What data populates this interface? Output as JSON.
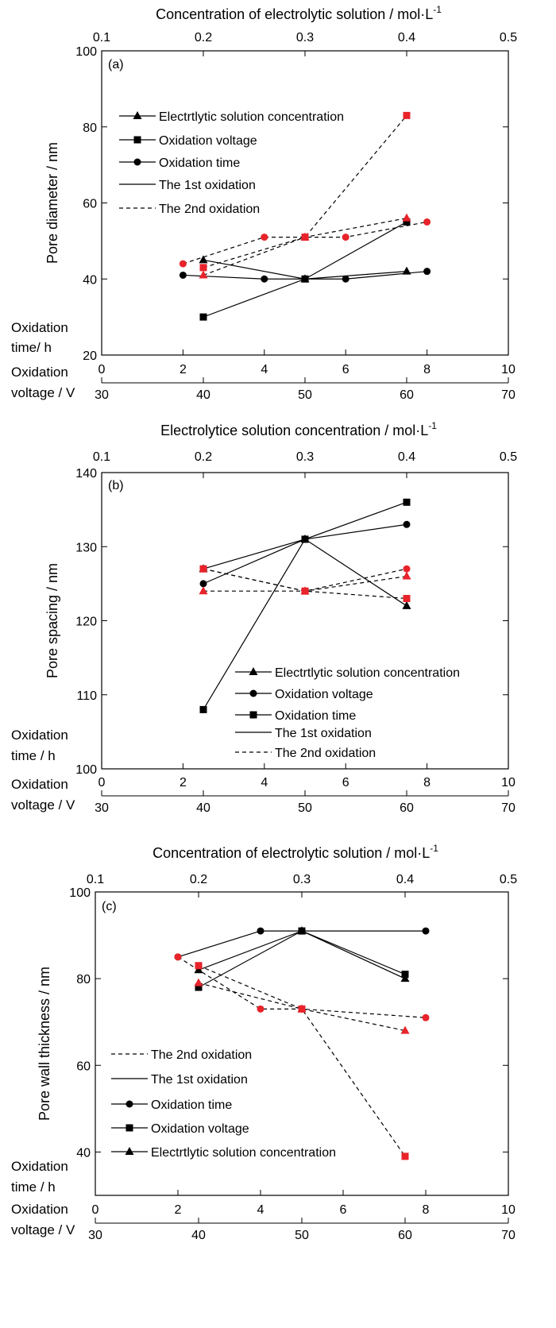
{
  "chart_data": [
    {
      "type": "line",
      "panel_label": "(a)",
      "ylabel": "Pore diameter / nm",
      "ylim": [
        20,
        100
      ],
      "yticks": [
        20,
        40,
        60,
        80,
        100
      ],
      "top_axis": {
        "label": "Concentration of electrolytic solution / mol·L",
        "superscript": "-1",
        "lim": [
          0.1,
          0.5
        ],
        "ticks": [
          "0.1",
          "0.2",
          "0.3",
          "0.4",
          "0.5"
        ]
      },
      "time_axis": {
        "label": "Oxidation time/ h",
        "lim": [
          0,
          10
        ],
        "ticks": [
          "0",
          "2",
          "4",
          "6",
          "8",
          "10"
        ]
      },
      "voltage_axis": {
        "label": "Oxidation voltage / V",
        "lim": [
          30,
          70
        ],
        "ticks": [
          "30",
          "40",
          "50",
          "60",
          "70"
        ]
      },
      "legend": {
        "entries": [
          {
            "label": "Electrtlytic solution concentration",
            "marker": "triangle",
            "style": "solid"
          },
          {
            "label": "Oxidation voltage",
            "marker": "square",
            "style": "solid"
          },
          {
            "label": "Oxidation time",
            "marker": "circle",
            "style": "solid"
          },
          {
            "label": "The 1st oxidation",
            "marker": "none",
            "style": "solid"
          },
          {
            "label": "The 2nd oxidation",
            "marker": "none",
            "style": "dashed"
          }
        ]
      },
      "series": [
        {
          "variable": "concentration",
          "oxidation": "1st",
          "marker": "triangle",
          "color": "#000000",
          "dash": false,
          "x": [
            0.2,
            0.3,
            0.4
          ],
          "y": [
            45,
            40,
            42
          ]
        },
        {
          "variable": "voltage",
          "oxidation": "1st",
          "marker": "square",
          "color": "#000000",
          "dash": false,
          "x": [
            40,
            50,
            60
          ],
          "y": [
            30,
            40,
            55
          ]
        },
        {
          "variable": "time",
          "oxidation": "1st",
          "marker": "circle",
          "color": "#000000",
          "dash": false,
          "x": [
            2,
            4,
            6,
            8
          ],
          "y": [
            41,
            40,
            40,
            42
          ]
        },
        {
          "variable": "concentration",
          "oxidation": "2nd",
          "marker": "triangle",
          "color": "#e8232a",
          "dash": true,
          "x": [
            0.2,
            0.3,
            0.4
          ],
          "y": [
            41,
            51,
            56
          ]
        },
        {
          "variable": "voltage",
          "oxidation": "2nd",
          "marker": "square",
          "color": "#e8232a",
          "dash": true,
          "x": [
            40,
            50,
            60
          ],
          "y": [
            43,
            51,
            83
          ]
        },
        {
          "variable": "time",
          "oxidation": "2nd",
          "marker": "circle",
          "color": "#e8232a",
          "dash": true,
          "x": [
            2,
            4,
            6,
            8
          ],
          "y": [
            44,
            51,
            51,
            55
          ]
        }
      ]
    },
    {
      "type": "line",
      "panel_label": "(b)",
      "ylabel": "Pore spacing / nm",
      "ylim": [
        100,
        140
      ],
      "yticks": [
        100,
        110,
        120,
        130,
        140
      ],
      "top_axis": {
        "label": "Electrolytice solution concentration / mol·L",
        "superscript": "-1",
        "lim": [
          0.1,
          0.5
        ],
        "ticks": [
          "0.1",
          "0.2",
          "0.3",
          "0.4",
          "0.5"
        ]
      },
      "time_axis": {
        "label": "Oxidation time / h",
        "lim": [
          0,
          10
        ],
        "ticks": [
          "0",
          "2",
          "4",
          "6",
          "8",
          "10"
        ]
      },
      "voltage_axis": {
        "label": "Oxidation voltage / V",
        "lim": [
          30,
          70
        ],
        "ticks": [
          "30",
          "40",
          "50",
          "60",
          "70"
        ]
      },
      "legend": {
        "entries": [
          {
            "label": "Electrtlytic solution concentration",
            "marker": "triangle",
            "style": "solid"
          },
          {
            "label": "Oxidation voltage",
            "marker": "circle",
            "style": "solid"
          },
          {
            "label": "Oxidation time",
            "marker": "square",
            "style": "solid"
          },
          {
            "label": "The 1st oxidation",
            "marker": "none",
            "style": "solid"
          },
          {
            "label": "The 2nd oxidation",
            "marker": "none",
            "style": "dashed"
          }
        ]
      },
      "series": [
        {
          "variable": "concentration",
          "oxidation": "1st",
          "marker": "triangle",
          "color": "#000000",
          "dash": false,
          "x": [
            0.2,
            0.3,
            0.4
          ],
          "y": [
            127,
            131,
            122
          ]
        },
        {
          "variable": "voltage",
          "oxidation": "1st",
          "marker": "circle",
          "color": "#000000",
          "dash": false,
          "x": [
            40,
            50,
            60
          ],
          "y": [
            125,
            131,
            133
          ]
        },
        {
          "variable": "time",
          "oxidation": "1st",
          "marker": "square",
          "color": "#000000",
          "dash": false,
          "x": [
            2.5,
            5,
            7.5
          ],
          "y": [
            108,
            131,
            136
          ]
        },
        {
          "variable": "concentration",
          "oxidation": "2nd",
          "marker": "triangle",
          "color": "#e8232a",
          "dash": true,
          "x": [
            0.2,
            0.3,
            0.4
          ],
          "y": [
            124,
            124,
            126
          ]
        },
        {
          "variable": "voltage",
          "oxidation": "2nd",
          "marker": "circle",
          "color": "#e8232a",
          "dash": true,
          "x": [
            40,
            50,
            60
          ],
          "y": [
            127,
            124,
            127
          ]
        },
        {
          "variable": "time",
          "oxidation": "2nd",
          "marker": "square",
          "color": "#e8232a",
          "dash": true,
          "x": [
            2.5,
            5,
            7.5
          ],
          "y": [
            127,
            124,
            123
          ]
        }
      ]
    },
    {
      "type": "line",
      "panel_label": "(c)",
      "ylabel": "Pore wall thickness / nm",
      "ylim": [
        30,
        100
      ],
      "yticks": [
        40,
        60,
        80,
        100
      ],
      "top_axis": {
        "label": "Concentration of electrolytic solution / mol·L",
        "superscript": "-1",
        "lim": [
          0.1,
          0.5
        ],
        "ticks": [
          "0.1",
          "0.2",
          "0.3",
          "0.4",
          "0.5"
        ]
      },
      "time_axis": {
        "label": "Oxidation time / h",
        "lim": [
          0,
          10
        ],
        "ticks": [
          "0",
          "2",
          "4",
          "6",
          "8",
          "10"
        ]
      },
      "voltage_axis": {
        "label": "Oxidation voltage / V",
        "lim": [
          30,
          70
        ],
        "ticks": [
          "30",
          "40",
          "50",
          "60",
          "70"
        ]
      },
      "legend": {
        "entries": [
          {
            "label": "The 2nd oxidation",
            "marker": "none",
            "style": "dashed"
          },
          {
            "label": "The 1st oxidation",
            "marker": "none",
            "style": "solid"
          },
          {
            "label": "Oxidation time",
            "marker": "circle",
            "style": "solid"
          },
          {
            "label": "Oxidation voltage",
            "marker": "square",
            "style": "solid"
          },
          {
            "label": "Electrtlytic solution concentration",
            "marker": "triangle",
            "style": "solid"
          }
        ]
      },
      "series": [
        {
          "variable": "time",
          "oxidation": "1st",
          "marker": "circle",
          "color": "#000000",
          "dash": false,
          "x": [
            2,
            4,
            5,
            8
          ],
          "y": [
            85,
            91,
            91,
            91
          ]
        },
        {
          "variable": "voltage",
          "oxidation": "1st",
          "marker": "square",
          "color": "#000000",
          "dash": false,
          "x": [
            40,
            50,
            60
          ],
          "y": [
            78,
            91,
            81
          ]
        },
        {
          "variable": "concentration",
          "oxidation": "1st",
          "marker": "triangle",
          "color": "#000000",
          "dash": false,
          "x": [
            0.2,
            0.3,
            0.4
          ],
          "y": [
            82,
            91,
            80
          ]
        },
        {
          "variable": "time",
          "oxidation": "2nd",
          "marker": "circle",
          "color": "#e8232a",
          "dash": true,
          "x": [
            2,
            4,
            5,
            8
          ],
          "y": [
            85,
            73,
            73,
            71
          ]
        },
        {
          "variable": "voltage",
          "oxidation": "2nd",
          "marker": "square",
          "color": "#e8232a",
          "dash": true,
          "x": [
            40,
            50,
            60
          ],
          "y": [
            83,
            73,
            39
          ]
        },
        {
          "variable": "concentration",
          "oxidation": "2nd",
          "marker": "triangle",
          "color": "#e8232a",
          "dash": true,
          "x": [
            0.2,
            0.3,
            0.4
          ],
          "y": [
            79,
            73,
            68
          ]
        }
      ]
    }
  ]
}
